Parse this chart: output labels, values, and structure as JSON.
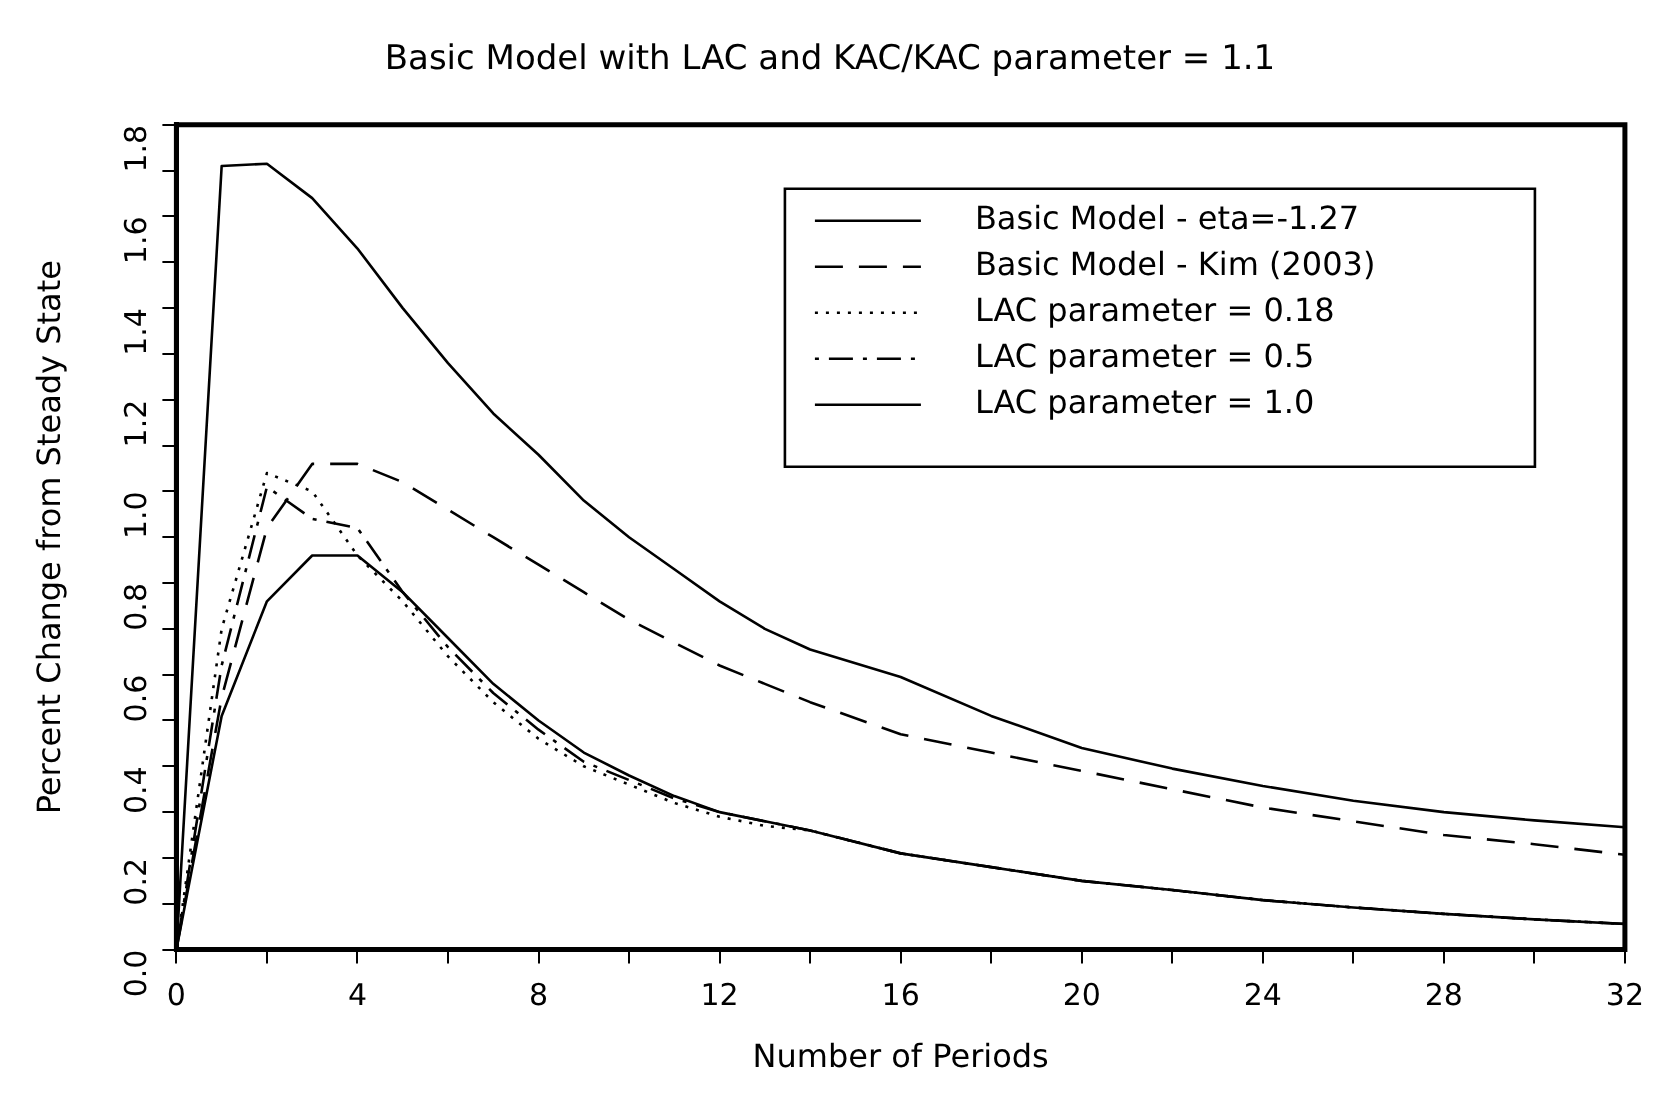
{
  "chart_data": {
    "type": "line",
    "title": "Basic Model with LAC and KAC/KAC parameter = 1.1",
    "xlabel": "Number of Periods",
    "ylabel": "Percent Change from Steady State",
    "xlim": [
      0,
      32
    ],
    "ylim": [
      0,
      1.8
    ],
    "xticks": [
      0,
      {
        "value": 2,
        "label": null
      },
      4,
      {
        "value": 6,
        "label": null
      },
      8,
      {
        "value": 10,
        "label": null
      },
      12,
      {
        "value": 14,
        "label": null
      },
      16,
      {
        "value": 18,
        "label": null
      },
      20,
      {
        "value": 22,
        "label": null
      },
      24,
      {
        "value": 26,
        "label": null
      },
      28,
      {
        "value": 30,
        "label": null
      },
      32
    ],
    "yticks": [
      {
        "value": 0,
        "label": "0.0"
      },
      {
        "value": 0.1,
        "label": null
      },
      {
        "value": 0.2,
        "label": "0.2"
      },
      {
        "value": 0.3,
        "label": null
      },
      {
        "value": 0.4,
        "label": "0.4"
      },
      {
        "value": 0.5,
        "label": null
      },
      {
        "value": 0.6,
        "label": "0.6"
      },
      {
        "value": 0.7,
        "label": null
      },
      {
        "value": 0.8,
        "label": "0.8"
      },
      {
        "value": 0.9,
        "label": null
      },
      {
        "value": 1.0,
        "label": "1.0"
      },
      {
        "value": 1.1,
        "label": null
      },
      {
        "value": 1.2,
        "label": "1.2"
      },
      {
        "value": 1.3,
        "label": null
      },
      {
        "value": 1.4,
        "label": "1.4"
      },
      {
        "value": 1.5,
        "label": null
      },
      {
        "value": 1.6,
        "label": "1.6"
      },
      {
        "value": 1.7,
        "label": null
      },
      {
        "value": 1.8,
        "label": "1.8"
      }
    ],
    "x": [
      0,
      1,
      2,
      3,
      4,
      5,
      6,
      7,
      8,
      9,
      10,
      11,
      12,
      13,
      14,
      16,
      18,
      20,
      22,
      24,
      26,
      28,
      30,
      32
    ],
    "grid": false,
    "legend": "top right",
    "marker": "none",
    "series": [
      {
        "name": "Basic Model - eta=-1.27",
        "color": "#000000",
        "line_style": "solid",
        "values": [
          0,
          1.71,
          1.715,
          1.64,
          1.53,
          1.4,
          1.28,
          1.17,
          1.08,
          0.98,
          0.9,
          0.83,
          0.76,
          0.7,
          0.655,
          0.595,
          0.51,
          0.44,
          0.395,
          0.357,
          0.325,
          0.3,
          0.282,
          0.267
        ]
      },
      {
        "name": "Basic Model - Kim (2003)",
        "color": "#000000",
        "line_style": "dashed",
        "values": [
          0,
          0.55,
          0.92,
          1.06,
          1.06,
          1.02,
          0.96,
          0.9,
          0.84,
          0.78,
          0.72,
          0.67,
          0.62,
          0.58,
          0.54,
          0.47,
          0.43,
          0.39,
          0.35,
          0.31,
          0.28,
          0.25,
          0.23,
          0.207
        ]
      },
      {
        "name": "LAC parameter = 0.18",
        "color": "#000000",
        "line_style": "dotted",
        "values": [
          0,
          0.7,
          1.04,
          1.0,
          0.86,
          0.76,
          0.64,
          0.54,
          0.46,
          0.4,
          0.36,
          0.32,
          0.29,
          0.27,
          0.26,
          0.21,
          0.18,
          0.15,
          0.13,
          0.108,
          0.092,
          0.078,
          0.066,
          0.056
        ]
      },
      {
        "name": "LAC parameter = 0.5",
        "color": "#000000",
        "line_style": "dashdot",
        "values": [
          0,
          0.62,
          1.01,
          0.94,
          0.92,
          0.78,
          0.66,
          0.56,
          0.48,
          0.41,
          0.37,
          0.33,
          0.3,
          0.28,
          0.26,
          0.21,
          0.18,
          0.15,
          0.13,
          0.108,
          0.092,
          0.078,
          0.066,
          0.056
        ]
      },
      {
        "name": "LAC parameter = 1.0",
        "color": "#000000",
        "line_style": "solid",
        "values": [
          0,
          0.51,
          0.76,
          0.86,
          0.86,
          0.78,
          0.68,
          0.58,
          0.5,
          0.43,
          0.38,
          0.335,
          0.3,
          0.28,
          0.26,
          0.21,
          0.18,
          0.15,
          0.13,
          0.108,
          0.092,
          0.078,
          0.066,
          0.056
        ]
      }
    ]
  }
}
